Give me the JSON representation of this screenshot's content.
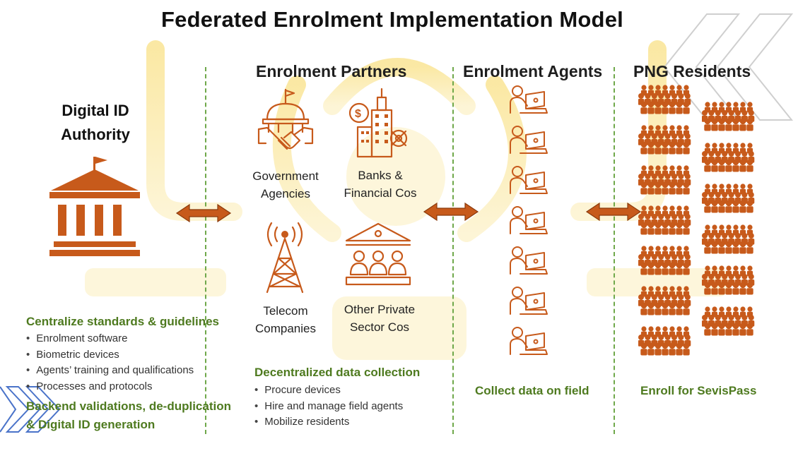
{
  "title": "Federated Enrolment Implementation Model",
  "authority": {
    "heading_line1": "Digital ID",
    "heading_line2": "Authority",
    "section_title": "Centralize standards & guidelines",
    "items": [
      "Enrolment software",
      "Biometric devices",
      "Agents’ training and qualifications",
      "Processes and protocols"
    ],
    "footer_line1": "Backend validations, de-duplication",
    "footer_line2": "& Digital ID generation"
  },
  "partners": {
    "heading": "Enrolment Partners",
    "government_line1": "Government",
    "government_line2": "Agencies",
    "banks_line1": "Banks &",
    "banks_line2": "Financial Cos",
    "telecom_line1": "Telecom",
    "telecom_line2": "Companies",
    "private_line1": "Other Private",
    "private_line2": "Sector Cos",
    "section_title": "Decentralized data collection",
    "items": [
      "Procure devices",
      "Hire and manage field agents",
      "Mobilize residents"
    ]
  },
  "agents": {
    "heading": "Enrolment Agents",
    "caption": "Collect data on field"
  },
  "residents": {
    "heading": "PNG Residents",
    "caption": "Enroll for SevisPass"
  },
  "colors": {
    "accent": "#c75a1b",
    "green": "#4e7a1f",
    "divider": "#6fa84a",
    "watermark": "#f3d24a"
  },
  "icons": {
    "authority": "government-building-icon",
    "government": "government-handshake-icon",
    "banks": "bank-finance-icon",
    "telecom": "telecom-tower-icon",
    "private": "private-sector-people-icon",
    "agent": "agent-laptop-icon",
    "residents": "people-crowd-icon",
    "arrow": "double-headed-arrow-icon"
  }
}
